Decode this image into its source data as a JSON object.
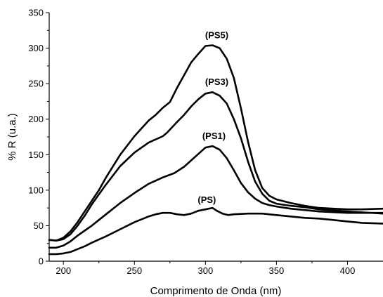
{
  "chart_data": {
    "type": "line",
    "title": "",
    "xlabel": "Comprimento de Onda (nm)",
    "ylabel": "% R (u.a.)",
    "xlim": [
      190,
      425
    ],
    "ylim": [
      0,
      350
    ],
    "x_ticks": [
      200,
      250,
      300,
      350,
      400
    ],
    "y_ticks": [
      0,
      50,
      100,
      150,
      200,
      250,
      300,
      350
    ],
    "grid": false,
    "line_color": "#000000",
    "series": [
      {
        "name": "(PS5)",
        "points": [
          [
            190,
            30
          ],
          [
            195,
            29
          ],
          [
            200,
            33
          ],
          [
            205,
            42
          ],
          [
            210,
            55
          ],
          [
            215,
            70
          ],
          [
            220,
            85
          ],
          [
            225,
            100
          ],
          [
            230,
            118
          ],
          [
            240,
            150
          ],
          [
            250,
            176
          ],
          [
            260,
            198
          ],
          [
            265,
            206
          ],
          [
            270,
            216
          ],
          [
            275,
            224
          ],
          [
            280,
            244
          ],
          [
            285,
            262
          ],
          [
            290,
            280
          ],
          [
            295,
            292
          ],
          [
            300,
            303
          ],
          [
            305,
            304
          ],
          [
            310,
            300
          ],
          [
            315,
            285
          ],
          [
            320,
            258
          ],
          [
            325,
            215
          ],
          [
            330,
            168
          ],
          [
            335,
            128
          ],
          [
            340,
            103
          ],
          [
            345,
            92
          ],
          [
            350,
            87
          ],
          [
            360,
            82
          ],
          [
            370,
            78
          ],
          [
            380,
            75
          ],
          [
            390,
            74
          ],
          [
            400,
            73
          ],
          [
            410,
            73
          ],
          [
            425,
            74
          ]
        ]
      },
      {
        "name": "(PS3)",
        "points": [
          [
            190,
            30
          ],
          [
            195,
            29
          ],
          [
            200,
            31
          ],
          [
            205,
            38
          ],
          [
            210,
            50
          ],
          [
            215,
            64
          ],
          [
            220,
            80
          ],
          [
            225,
            94
          ],
          [
            230,
            108
          ],
          [
            240,
            134
          ],
          [
            250,
            153
          ],
          [
            260,
            167
          ],
          [
            270,
            176
          ],
          [
            273,
            181
          ],
          [
            280,
            196
          ],
          [
            285,
            206
          ],
          [
            290,
            218
          ],
          [
            295,
            228
          ],
          [
            300,
            236
          ],
          [
            305,
            238
          ],
          [
            310,
            233
          ],
          [
            315,
            222
          ],
          [
            320,
            200
          ],
          [
            325,
            173
          ],
          [
            330,
            140
          ],
          [
            335,
            112
          ],
          [
            340,
            95
          ],
          [
            345,
            85
          ],
          [
            350,
            81
          ],
          [
            360,
            78
          ],
          [
            370,
            76
          ],
          [
            380,
            73
          ],
          [
            400,
            70
          ],
          [
            425,
            67
          ]
        ]
      },
      {
        "name": "(PS1)",
        "points": [
          [
            190,
            19
          ],
          [
            195,
            19
          ],
          [
            200,
            22
          ],
          [
            205,
            28
          ],
          [
            210,
            36
          ],
          [
            215,
            43
          ],
          [
            220,
            50
          ],
          [
            225,
            58
          ],
          [
            230,
            66
          ],
          [
            240,
            82
          ],
          [
            250,
            96
          ],
          [
            260,
            109
          ],
          [
            270,
            118
          ],
          [
            278,
            124
          ],
          [
            285,
            133
          ],
          [
            290,
            142
          ],
          [
            295,
            151
          ],
          [
            300,
            160
          ],
          [
            305,
            162
          ],
          [
            310,
            157
          ],
          [
            315,
            145
          ],
          [
            320,
            128
          ],
          [
            325,
            110
          ],
          [
            330,
            97
          ],
          [
            335,
            88
          ],
          [
            340,
            82
          ],
          [
            345,
            79
          ],
          [
            350,
            77
          ],
          [
            360,
            74
          ],
          [
            370,
            72
          ],
          [
            380,
            70
          ],
          [
            400,
            68
          ],
          [
            425,
            68
          ]
        ]
      },
      {
        "name": "(PS)",
        "points": [
          [
            190,
            10
          ],
          [
            195,
            10
          ],
          [
            200,
            11
          ],
          [
            205,
            13
          ],
          [
            210,
            17
          ],
          [
            215,
            21
          ],
          [
            220,
            26
          ],
          [
            230,
            35
          ],
          [
            240,
            45
          ],
          [
            250,
            55
          ],
          [
            260,
            63
          ],
          [
            265,
            66
          ],
          [
            270,
            68
          ],
          [
            275,
            68
          ],
          [
            280,
            66
          ],
          [
            285,
            65
          ],
          [
            290,
            67
          ],
          [
            295,
            71
          ],
          [
            300,
            73
          ],
          [
            305,
            75
          ],
          [
            308,
            71
          ],
          [
            312,
            67
          ],
          [
            316,
            65
          ],
          [
            320,
            66
          ],
          [
            330,
            67
          ],
          [
            340,
            67
          ],
          [
            350,
            65
          ],
          [
            360,
            63
          ],
          [
            370,
            61
          ],
          [
            380,
            60
          ],
          [
            390,
            58
          ],
          [
            400,
            56
          ],
          [
            410,
            54
          ],
          [
            425,
            53
          ]
        ]
      }
    ],
    "annotations": [
      {
        "text": "(PS5)",
        "x": 308,
        "y": 314
      },
      {
        "text": "(PS3)",
        "x": 308,
        "y": 248
      },
      {
        "text": "(PS1)",
        "x": 306,
        "y": 172
      },
      {
        "text": "(PS)",
        "x": 301,
        "y": 82
      }
    ]
  }
}
